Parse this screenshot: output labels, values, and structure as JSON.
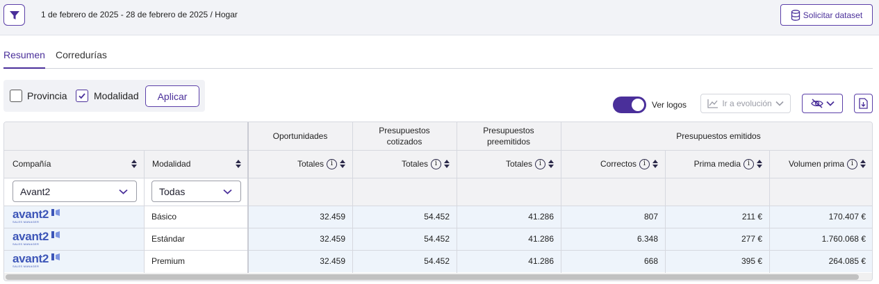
{
  "topbar": {
    "context_text": "1 de febrero de 2025 - 28 de febrero de 2025 / Hogar",
    "dataset_button": "Solicitar dataset"
  },
  "tabs": [
    {
      "label": "Resumen",
      "active": true
    },
    {
      "label": "Corredurías",
      "active": false
    }
  ],
  "filters": {
    "provincia": {
      "label": "Provincia",
      "checked": false
    },
    "modalidad": {
      "label": "Modalidad",
      "checked": true
    },
    "apply_label": "Aplicar"
  },
  "controls": {
    "logos_toggle_label": "Ver logos",
    "logos_toggle_on": true,
    "evolution_label": "Ir a evolución"
  },
  "table": {
    "group_headers": {
      "oportunidades": "Oportunidades",
      "cotizados": [
        "Presupuestos",
        "cotizados"
      ],
      "preemitidos": [
        "Presupuestos",
        "preemitidos"
      ],
      "emitidos": "Presupuestos emitidos"
    },
    "columns": {
      "compania": "Compañía",
      "modalidad": "Modalidad",
      "opp_totales": "Totales",
      "cot_totales": "Totales",
      "pre_totales": "Totales",
      "correctos": "Correctos",
      "prima_media": "Prima media",
      "volumen_prima": "Volumen prima"
    },
    "filters": {
      "compania": "Avant2",
      "modalidad": "Todas"
    },
    "logo": {
      "text": "avant2",
      "subtext": "SALES MANAGER"
    },
    "rows": [
      {
        "modalidad": "Básico",
        "oportunidades": "32.459",
        "cotizados": "54.452",
        "preemitidos": "41.286",
        "correctos": "807",
        "prima_media": "211 €",
        "volumen_prima": "170.407 €"
      },
      {
        "modalidad": "Estándar",
        "oportunidades": "32.459",
        "cotizados": "54.452",
        "preemitidos": "41.286",
        "correctos": "6.348",
        "prima_media": "277 €",
        "volumen_prima": "1.760.068 €"
      },
      {
        "modalidad": "Premium",
        "oportunidades": "32.459",
        "cotizados": "54.452",
        "preemitidos": "41.286",
        "correctos": "668",
        "prima_media": "395 €",
        "volumen_prima": "264.085 €"
      }
    ]
  },
  "colors": {
    "accent": "#4a2f9a",
    "row_highlight": "#eef4fb",
    "logo_blue": "#3d56b8"
  }
}
